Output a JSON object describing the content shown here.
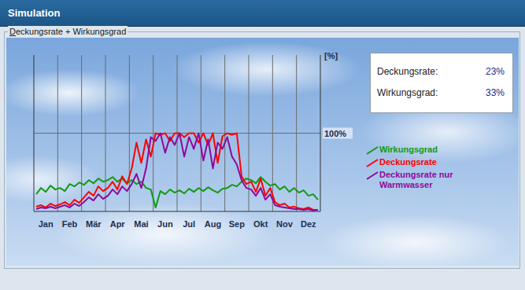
{
  "window": {
    "title": "Simulation"
  },
  "summary": [
    {
      "label": "Deckungsrate:",
      "value": "23%"
    },
    {
      "label": "Wirkungsgrad:",
      "value": "33%"
    }
  ],
  "chart_data": {
    "type": "line",
    "title": "Deckungsrate + Wirkungsgrad",
    "y_label": "[%]",
    "categories": [
      null,
      null,
      "Jan",
      null,
      null,
      null,
      null,
      "Feb",
      null,
      null,
      null,
      null,
      "Mär",
      null,
      null,
      null,
      null,
      "Apr",
      null,
      null,
      null,
      null,
      "Mai",
      null,
      null,
      null,
      null,
      "Jun",
      null,
      null,
      null,
      null,
      "Jul",
      null,
      null,
      null,
      null,
      "Aug",
      null,
      null,
      null,
      null,
      "Sep",
      null,
      null,
      null,
      null,
      "Okt",
      null,
      null,
      null,
      null,
      "Nov",
      null,
      null,
      null,
      null,
      "Dez",
      null,
      null
    ],
    "series": [
      {
        "name": "Wirkungsgrad",
        "color": "#129a12",
        "values": [
          22,
          30,
          25,
          33,
          28,
          30,
          26,
          35,
          32,
          37,
          34,
          40,
          36,
          42,
          38,
          40,
          44,
          38,
          42,
          36,
          40,
          35,
          38,
          30,
          28,
          5,
          26,
          22,
          28,
          24,
          27,
          23,
          29,
          25,
          30,
          26,
          31,
          27,
          24,
          29,
          30,
          34,
          32,
          38,
          42,
          40,
          36,
          44,
          38,
          33,
          35,
          28,
          32,
          25,
          30,
          24,
          27,
          20,
          22,
          15
        ]
      },
      {
        "name": "Deckungsrate",
        "color": "#ff0000",
        "values": [
          6,
          8,
          5,
          10,
          7,
          9,
          12,
          8,
          15,
          11,
          18,
          25,
          20,
          32,
          26,
          30,
          38,
          28,
          45,
          35,
          55,
          88,
          62,
          92,
          70,
          100,
          98,
          100,
          90,
          100,
          100,
          95,
          100,
          100,
          88,
          100,
          85,
          100,
          62,
          96,
          100,
          98,
          100,
          45,
          35,
          38,
          25,
          42,
          20,
          30,
          12,
          8,
          10,
          5,
          6,
          4,
          3,
          5,
          2,
          2
        ]
      },
      {
        "name": "Deckungsrate nur Warmwasser",
        "color": "#8e0a9a",
        "values": [
          3,
          5,
          4,
          6,
          4,
          6,
          8,
          5,
          10,
          7,
          12,
          18,
          14,
          22,
          16,
          20,
          28,
          22,
          32,
          26,
          35,
          48,
          30,
          55,
          95,
          90,
          100,
          75,
          95,
          85,
          100,
          70,
          95,
          80,
          100,
          65,
          92,
          55,
          88,
          80,
          95,
          70,
          60,
          40,
          30,
          28,
          20,
          30,
          15,
          22,
          8,
          6,
          5,
          4,
          3,
          3,
          2,
          3,
          1,
          2
        ]
      }
    ],
    "ylim": [
      0,
      200
    ],
    "yticks": [
      {
        "value": 100,
        "label": "100%"
      }
    ],
    "grid": true,
    "legend": "right"
  }
}
